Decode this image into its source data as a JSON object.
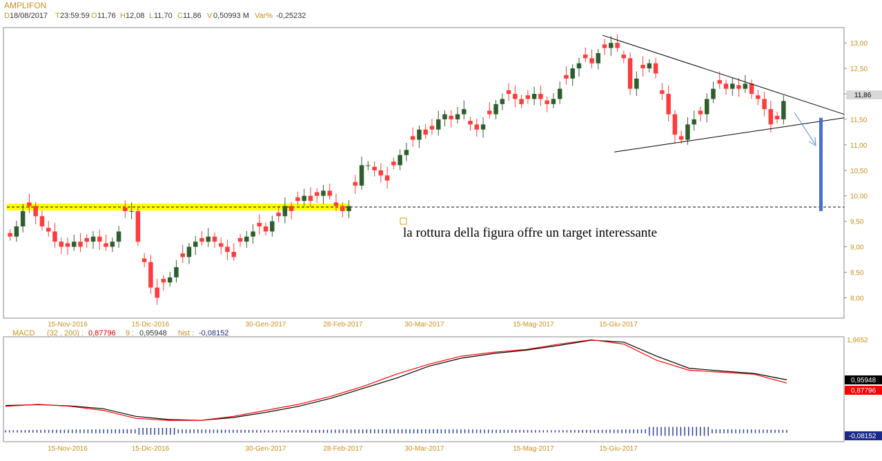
{
  "header": {
    "instrument": "AMPLIFON",
    "date_label": "D",
    "date_value": "18/08/2017",
    "time_label": "T",
    "time_value": "23:59:59",
    "open_label": "O",
    "open_value": "11,76",
    "high_label": "H",
    "high_value": "12,08",
    "low_label": "L",
    "low_value": "11,70",
    "close_label": "C",
    "close_value": "11,86",
    "volume_label": "V",
    "volume_value": "0,50993 M",
    "var_label": "Var%",
    "var_value": "-0,25232"
  },
  "macd_header": {
    "name": "MACD",
    "params": "(32 , 200) :",
    "macd_value": "0,87796",
    "signal_label": "9 :",
    "signal_value": "0,95948",
    "hist_label": "hist :",
    "hist_value": "-0,08152"
  },
  "annotation": "la rottura della figura offre un target interessante",
  "last_price_badge": "11,86",
  "macd_badges": {
    "signal": "0,95948",
    "macd": "0,87796",
    "hist": "-0,08152"
  },
  "colors": {
    "up_candle": "#2e5e2e",
    "down_candle": "#ff3b3b",
    "axis_text": "#c8901a",
    "support_zone": "#ffff00",
    "target_bar": "#4a6fd1",
    "arrow": "#4a8fdc",
    "macd_line": "#000000",
    "signal_line": "#ff0000",
    "hist_bar": "#2a3f9a"
  },
  "chart_data": [
    {
      "type": "candlestick",
      "title": "AMPLIFON",
      "ylim": [
        7.6,
        13.3
      ],
      "y_ticks": [
        "13,00",
        "12,50",
        "12,00",
        "11,50",
        "11,00",
        "10,50",
        "10,00",
        "9,50",
        "9,00",
        "8,50",
        "8,00"
      ],
      "x_ticks": [
        "15-Nov-2016",
        "15-Dic-2016",
        "30-Gen-2017",
        "28-Feb-2017",
        "30-Mar-2017",
        "15-Mag-2017",
        "15-Giu-2017"
      ],
      "last_close": 11.86,
      "close_series_approx": [
        9.2,
        9.4,
        9.7,
        9.8,
        9.6,
        9.4,
        9.3,
        9.1,
        9.0,
        9.0,
        9.1,
        9.0,
        9.1,
        9.2,
        9.1,
        9.0,
        9.1,
        9.3,
        9.7,
        9.7,
        9.1,
        8.7,
        8.2,
        8.0,
        8.3,
        8.4,
        8.6,
        8.8,
        9.0,
        9.1,
        9.1,
        9.2,
        9.1,
        9.0,
        8.9,
        8.8,
        9.1,
        9.2,
        9.3,
        9.4,
        9.3,
        9.5,
        9.6,
        9.8,
        9.7,
        9.9,
        10.0,
        9.9,
        10.0,
        10.1,
        10.0,
        9.8,
        9.7,
        9.8,
        10.2,
        10.6,
        10.6,
        10.5,
        10.4,
        10.3,
        10.6,
        10.8,
        10.9,
        11.1,
        11.3,
        11.2,
        11.3,
        11.5,
        11.6,
        11.5,
        11.6,
        11.7,
        11.4,
        11.3,
        11.4,
        11.6,
        11.8,
        11.9,
        12.0,
        11.9,
        11.8,
        11.9,
        12.0,
        11.9,
        11.8,
        11.9,
        12.1,
        12.3,
        12.5,
        12.6,
        12.7,
        12.6,
        12.8,
        12.9,
        13.0,
        12.9,
        12.7,
        12.1,
        12.3,
        12.5,
        12.6,
        12.4,
        12.0,
        11.6,
        11.2,
        11.1,
        11.4,
        11.5,
        11.6,
        11.9,
        12.1,
        12.2,
        12.1,
        12.2,
        12.1,
        12.2,
        12.0,
        11.9,
        11.7,
        11.4,
        11.5,
        11.86
      ],
      "trendline_upper": [
        [
          0.0,
          13.15
        ],
        [
          1.0,
          11.6
        ]
      ],
      "trendline_lower": [
        [
          0.0,
          10.86
        ],
        [
          1.0,
          11.53
        ]
      ],
      "support_level": 9.7,
      "target_level": 9.7
    },
    {
      "type": "line",
      "title": "MACD (32 , 200)",
      "x_ticks": [
        "15-Nov-2016",
        "15-Dic-2016",
        "30-Gen-2017",
        "28-Feb-2017",
        "30-Mar-2017",
        "15-Mag-2017",
        "15-Giu-2017"
      ],
      "y_max_label": "1,9652",
      "series": [
        {
          "name": "MACD",
          "last": 0.87796,
          "values": [
            0.3,
            0.35,
            0.3,
            0.2,
            0.0,
            -0.05,
            -0.05,
            0.05,
            0.2,
            0.35,
            0.55,
            0.8,
            1.1,
            1.35,
            1.55,
            1.65,
            1.72,
            1.85,
            1.96,
            1.85,
            1.45,
            1.2,
            1.15,
            1.1,
            0.88
          ]
        },
        {
          "name": "9",
          "last": 0.95948,
          "values": [
            0.32,
            0.34,
            0.31,
            0.24,
            0.05,
            -0.03,
            -0.05,
            0.02,
            0.15,
            0.3,
            0.5,
            0.75,
            1.0,
            1.3,
            1.5,
            1.62,
            1.7,
            1.82,
            1.95,
            1.9,
            1.55,
            1.25,
            1.18,
            1.12,
            0.96
          ]
        },
        {
          "name": "hist",
          "last": -0.08152
        }
      ]
    }
  ]
}
